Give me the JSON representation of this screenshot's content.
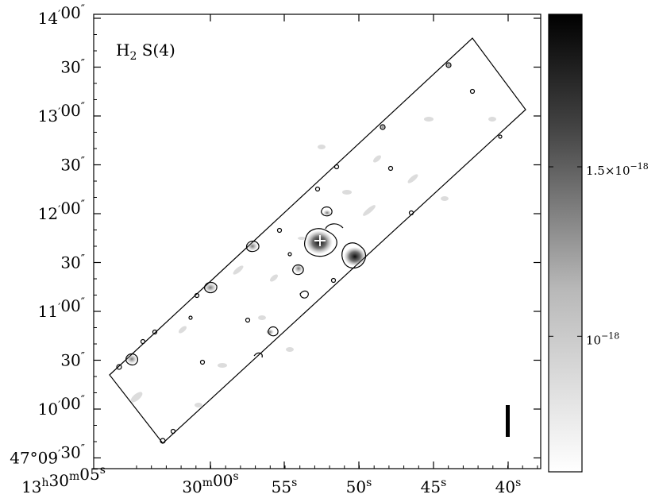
{
  "chart_data": {
    "type": "heatmap",
    "title": "H",
    "title_sub": "2",
    "title_rest": " S(4)",
    "y_ticks": [
      {
        "main": "14",
        "prime": "′",
        "rest": "00",
        "sec": "″"
      },
      {
        "main": "",
        "prime": "",
        "rest": "30",
        "sec": "″"
      },
      {
        "main": "13",
        "prime": "′",
        "rest": "00",
        "sec": "″"
      },
      {
        "main": "",
        "prime": "",
        "rest": "30",
        "sec": "″"
      },
      {
        "main": "12",
        "prime": "′",
        "rest": "00",
        "sec": "″"
      },
      {
        "main": "",
        "prime": "",
        "rest": "30",
        "sec": "″"
      },
      {
        "main": "11",
        "prime": "′",
        "rest": "00",
        "sec": "″"
      },
      {
        "main": "",
        "prime": "",
        "rest": "30",
        "sec": "″"
      },
      {
        "main": "10",
        "prime": "′",
        "rest": "00",
        "sec": "″"
      },
      {
        "main": "47°09",
        "prime": "′",
        "rest": "30",
        "sec": "″"
      }
    ],
    "x_ticks": [
      {
        "a": "13",
        "asup": "h",
        "b": "30",
        "bsup": "m",
        "c": "05",
        "csup": "s"
      },
      {
        "a": "",
        "asup": "",
        "b": "30",
        "bsup": "m",
        "c": "00",
        "csup": "s"
      },
      {
        "a": "",
        "asup": "",
        "b": "",
        "bsup": "",
        "c": "55",
        "csup": "s"
      },
      {
        "a": "",
        "asup": "",
        "b": "",
        "bsup": "",
        "c": "50",
        "csup": "s"
      },
      {
        "a": "",
        "asup": "",
        "b": "",
        "bsup": "",
        "c": "45",
        "csup": "s"
      },
      {
        "a": "",
        "asup": "",
        "b": "",
        "bsup": "",
        "c": "40",
        "csup": "s"
      }
    ],
    "colorbar": {
      "labels": [
        {
          "mant": "1.5×10",
          "exp": "−18",
          "value": 1.5e-18
        },
        {
          "mant": "10",
          "exp": "−18",
          "value": 1e-18
        }
      ],
      "range": [
        6e-19,
        1.95e-18
      ],
      "colormap": "white-to-black"
    },
    "peaks": [
      {
        "x": 0.47,
        "y": 0.5,
        "level": 1.0
      },
      {
        "x": 0.585,
        "y": 0.45,
        "level": 0.9
      },
      {
        "x": 0.05,
        "y": 0.22,
        "level": 0.4
      },
      {
        "x": 0.18,
        "y": 0.36,
        "level": 0.4
      },
      {
        "x": 0.31,
        "y": 0.44,
        "level": 0.35
      },
      {
        "x": 0.78,
        "y": 0.86,
        "level": 0.3
      }
    ]
  },
  "colors": {
    "axis": "#000000",
    "background": "#ffffff",
    "marker": "#ffffff",
    "colorbar_top": "#000000",
    "colorbar_bottom": "#ffffff"
  }
}
